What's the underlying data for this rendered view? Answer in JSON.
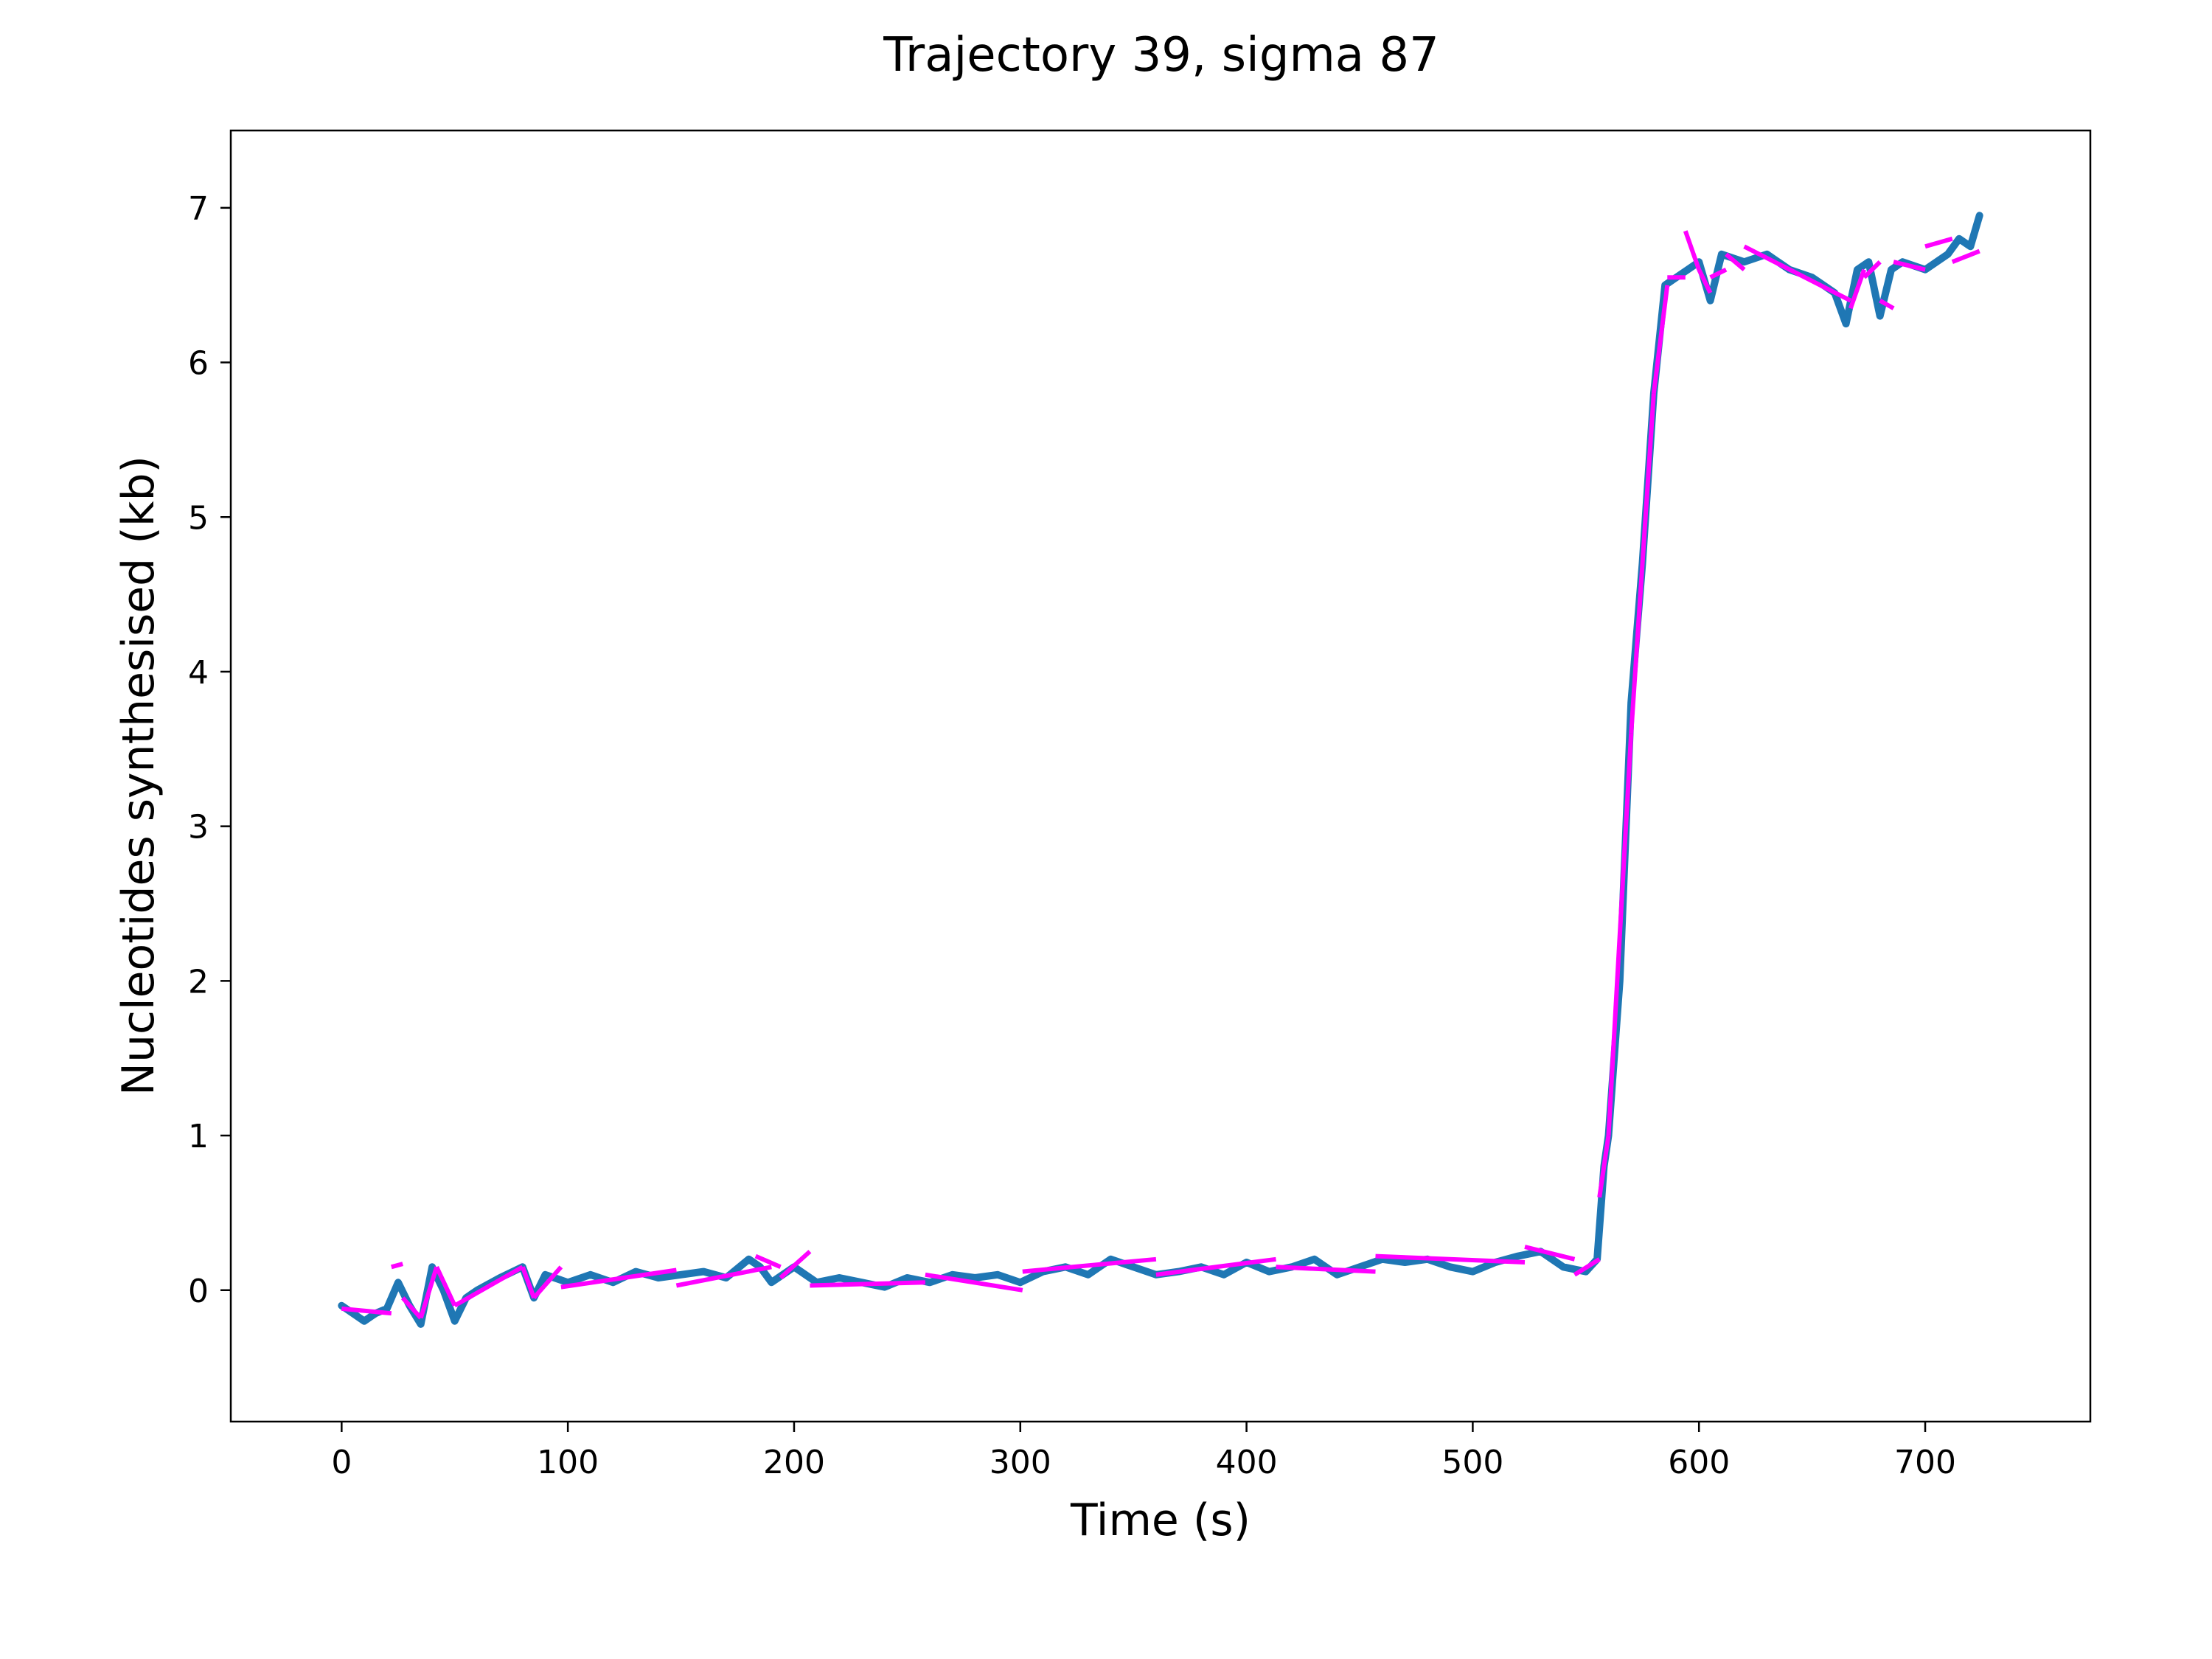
{
  "chart_data": {
    "type": "line",
    "title": "Trajectory 39, sigma 87",
    "xlabel": "Time (s)",
    "ylabel": "Nucleotides synthesised (kb)",
    "xlim": [
      -49,
      773
    ],
    "ylim": [
      -0.85,
      7.5
    ],
    "xticks": [
      0,
      100,
      200,
      300,
      400,
      500,
      600,
      700
    ],
    "yticks": [
      0,
      1,
      2,
      3,
      4,
      5,
      6,
      7
    ],
    "grid": false,
    "legend": "none",
    "series": [
      {
        "color": "#1f77b4",
        "style": "noisy-trace",
        "x": [
          0,
          5,
          10,
          15,
          20,
          25,
          30,
          35,
          40,
          45,
          50,
          55,
          60,
          70,
          80,
          85,
          90,
          100,
          110,
          120,
          130,
          140,
          150,
          160,
          170,
          180,
          185,
          190,
          200,
          210,
          220,
          230,
          240,
          250,
          260,
          270,
          280,
          290,
          300,
          310,
          320,
          330,
          340,
          350,
          360,
          370,
          380,
          390,
          400,
          410,
          420,
          430,
          440,
          450,
          460,
          470,
          480,
          490,
          500,
          510,
          520,
          530,
          540,
          550,
          555,
          558,
          560,
          565,
          570,
          575,
          580,
          585,
          590,
          595,
          600,
          605,
          610,
          620,
          630,
          640,
          650,
          660,
          665,
          670,
          675,
          680,
          685,
          690,
          700,
          710,
          715,
          720,
          724
        ],
        "y": [
          -0.1,
          -0.15,
          -0.2,
          -0.15,
          -0.12,
          0.05,
          -0.1,
          -0.22,
          0.15,
          0.0,
          -0.2,
          -0.05,
          0.0,
          0.08,
          0.15,
          -0.05,
          0.1,
          0.05,
          0.1,
          0.05,
          0.12,
          0.08,
          0.1,
          0.12,
          0.08,
          0.2,
          0.15,
          0.05,
          0.15,
          0.05,
          0.08,
          0.05,
          0.02,
          0.08,
          0.05,
          0.1,
          0.08,
          0.1,
          0.05,
          0.12,
          0.15,
          0.1,
          0.2,
          0.15,
          0.1,
          0.12,
          0.15,
          0.1,
          0.18,
          0.12,
          0.15,
          0.2,
          0.1,
          0.15,
          0.2,
          0.18,
          0.2,
          0.15,
          0.12,
          0.18,
          0.22,
          0.25,
          0.15,
          0.12,
          0.2,
          0.8,
          1.0,
          2.0,
          3.8,
          4.7,
          5.8,
          6.5,
          6.55,
          6.6,
          6.65,
          6.4,
          6.7,
          6.65,
          6.7,
          6.6,
          6.55,
          6.45,
          6.25,
          6.6,
          6.65,
          6.3,
          6.6,
          6.65,
          6.6,
          6.7,
          6.8,
          6.75,
          6.95
        ]
      },
      {
        "color": "#ff00ff",
        "style": "piecewise-fit",
        "segments": [
          {
            "x": [
              0,
              22
            ],
            "y": [
              -0.12,
              -0.15
            ]
          },
          {
            "x": [
              22,
              27
            ],
            "y": [
              0.15,
              0.17
            ]
          },
          {
            "x": [
              27,
              35
            ],
            "y": [
              -0.05,
              -0.18
            ]
          },
          {
            "x": [
              35,
              42
            ],
            "y": [
              -0.18,
              0.15
            ]
          },
          {
            "x": [
              42,
              50
            ],
            "y": [
              0.15,
              -0.1
            ]
          },
          {
            "x": [
              50,
              80
            ],
            "y": [
              -0.1,
              0.15
            ]
          },
          {
            "x": [
              80,
              85
            ],
            "y": [
              0.15,
              -0.05
            ]
          },
          {
            "x": [
              85,
              97
            ],
            "y": [
              -0.05,
              0.15
            ]
          },
          {
            "x": [
              97,
              148
            ],
            "y": [
              0.02,
              0.13
            ]
          },
          {
            "x": [
              148,
              190
            ],
            "y": [
              0.03,
              0.15
            ]
          },
          {
            "x": [
              183,
              194
            ],
            "y": [
              0.22,
              0.15
            ]
          },
          {
            "x": [
              194,
              207
            ],
            "y": [
              0.08,
              0.25
            ]
          },
          {
            "x": [
              207,
              258
            ],
            "y": [
              0.03,
              0.05
            ]
          },
          {
            "x": [
              258,
              301
            ],
            "y": [
              0.1,
              0.0
            ]
          },
          {
            "x": [
              301,
              360
            ],
            "y": [
              0.12,
              0.2
            ]
          },
          {
            "x": [
              360,
              413
            ],
            "y": [
              0.1,
              0.2
            ]
          },
          {
            "x": [
              413,
              457
            ],
            "y": [
              0.15,
              0.12
            ]
          },
          {
            "x": [
              457,
              523
            ],
            "y": [
              0.22,
              0.18
            ]
          },
          {
            "x": [
              523,
              545
            ],
            "y": [
              0.28,
              0.2
            ]
          },
          {
            "x": [
              545,
              556
            ],
            "y": [
              0.1,
              0.2
            ]
          },
          {
            "x": [
              556,
              560
            ],
            "y": [
              0.6,
              1.0
            ]
          },
          {
            "x": [
              560,
              570
            ],
            "y": [
              1.0,
              3.6
            ]
          },
          {
            "x": [
              570,
              580
            ],
            "y": [
              3.6,
              5.8
            ]
          },
          {
            "x": [
              580,
              586
            ],
            "y": [
              5.8,
              6.5
            ]
          },
          {
            "x": [
              586,
              594
            ],
            "y": [
              6.55,
              6.55
            ]
          },
          {
            "x": [
              594,
              600
            ],
            "y": [
              6.85,
              6.6
            ]
          },
          {
            "x": [
              600,
              605
            ],
            "y": [
              6.6,
              6.45
            ]
          },
          {
            "x": [
              605,
              612
            ],
            "y": [
              6.55,
              6.6
            ]
          },
          {
            "x": [
              612,
              620
            ],
            "y": [
              6.7,
              6.6
            ]
          },
          {
            "x": [
              620,
              667
            ],
            "y": [
              6.75,
              6.4
            ]
          },
          {
            "x": [
              667,
              673
            ],
            "y": [
              6.35,
              6.6
            ]
          },
          {
            "x": [
              673,
              680
            ],
            "y": [
              6.55,
              6.65
            ]
          },
          {
            "x": [
              680,
              686
            ],
            "y": [
              6.4,
              6.35
            ]
          },
          {
            "x": [
              686,
              700
            ],
            "y": [
              6.65,
              6.6
            ]
          },
          {
            "x": [
              700,
              712
            ],
            "y": [
              6.75,
              6.8
            ]
          },
          {
            "x": [
              712,
              724
            ],
            "y": [
              6.65,
              6.72
            ]
          }
        ]
      }
    ]
  }
}
